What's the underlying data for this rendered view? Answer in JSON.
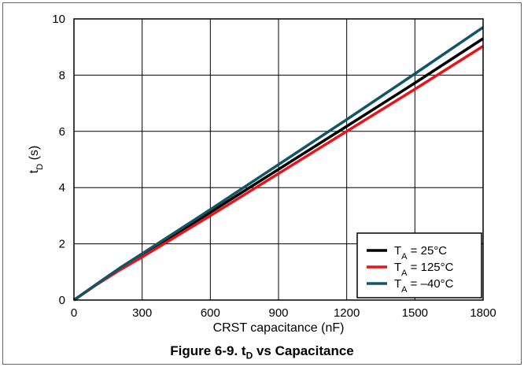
{
  "chart_data": {
    "type": "line",
    "title": "Figure 6-9. tD vs Capacitance",
    "caption": {
      "prefix": "Figure 6-9. t",
      "sub": "D",
      "suffix": " vs Capacitance"
    },
    "xlabel": "CRST capacitance (nF)",
    "ylabel": {
      "main": "t",
      "sub": "D",
      "suffix": " (s)"
    },
    "xlim": [
      0,
      1800
    ],
    "ylim": [
      0,
      10
    ],
    "xticks": [
      0,
      300,
      600,
      900,
      1200,
      1500,
      1800
    ],
    "yticks": [
      0,
      2,
      4,
      6,
      8,
      10
    ],
    "grid": true,
    "legend_position": "bottom-right",
    "series": [
      {
        "name": "TA = 25°C",
        "label": {
          "main": "T",
          "sub": "A",
          "suffix": " = 25°C"
        },
        "color": "#000000",
        "x": [
          0,
          100,
          200,
          300,
          600,
          900,
          1200,
          1500,
          1800
        ],
        "y": [
          0,
          0.56,
          1.1,
          1.6,
          3.12,
          4.65,
          6.18,
          7.72,
          9.3
        ]
      },
      {
        "name": "TA = 125°C",
        "label": {
          "main": "T",
          "sub": "A",
          "suffix": " = 125°C"
        },
        "color": "#e8141b",
        "x": [
          0,
          100,
          200,
          300,
          600,
          900,
          1200,
          1500,
          1800
        ],
        "y": [
          0,
          0.55,
          1.06,
          1.53,
          3.0,
          4.5,
          6.0,
          7.5,
          9.03
        ]
      },
      {
        "name": "TA = –40°C",
        "label": {
          "main": "T",
          "sub": "A",
          "suffix": " = –40°C"
        },
        "color": "#115566",
        "x": [
          0,
          100,
          200,
          300,
          600,
          900,
          1200,
          1500,
          1800
        ],
        "y": [
          0,
          0.57,
          1.13,
          1.65,
          3.22,
          4.82,
          6.42,
          8.05,
          9.7
        ]
      }
    ]
  }
}
